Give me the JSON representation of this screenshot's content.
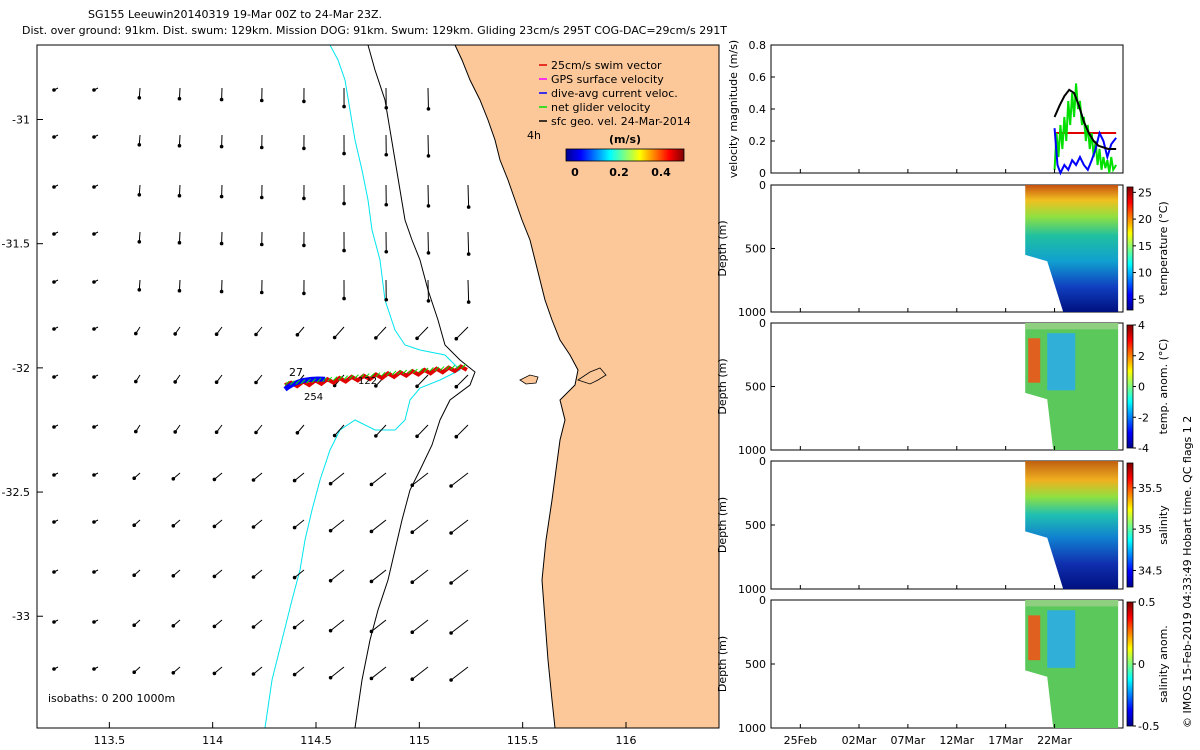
{
  "title": {
    "line1": "SG155 Leeuwin20140319 19-Mar 00Z to 24-Mar 23Z.",
    "line2": "Dist. over ground: 91km. Dist. swum: 129km. Mission DOG: 91km. Swum: 129km. Gliding 23cm/s 295T COG-DAC=29cm/s 291T"
  },
  "footer": "© IMOS 15-Feb-2019 04:33:49 Hobart time. QC flags 1  2",
  "colors": {
    "land": "#fcc89a",
    "isobath": "#000000",
    "isobath_shelf": "#00e5ee",
    "swim": "#e00000",
    "gps": "#ff00ff",
    "dac": "#0000ff",
    "net": "#00e000",
    "geo": "#000000"
  },
  "chart_data": [
    {
      "type": "map",
      "xlim": [
        113.15,
        116.45
      ],
      "ylim": [
        -33.45,
        -30.7
      ],
      "xticks": [
        "113.5",
        "114",
        "114.5",
        "115",
        "115.5",
        "116"
      ],
      "yticks": [
        "-31",
        "-31.5",
        "-32",
        "-32.5",
        "-33"
      ],
      "legend": {
        "placement": "top-right",
        "entries": [
          "25cm/s swim vector",
          "GPS surface velocity",
          "dive-avg current veloc.",
          "net glider velocity",
          "sfc geo. vel. 24-Mar-2014"
        ]
      },
      "colorbar": {
        "label": "(m/s)",
        "ticks": [
          "0",
          "0.2",
          "0.4"
        ],
        "range": [
          0,
          0.5
        ]
      },
      "annotations": {
        "time_label": "4h",
        "isobaths": "isobaths: 0   200  1000m",
        "dive_start": "27",
        "dive_end": "254",
        "dive_mid": "122"
      },
      "track": {
        "lon": [
          115.23,
          114.35
        ],
        "lat": [
          -32.0,
          -32.07
        ]
      }
    },
    {
      "type": "line",
      "ylabel": "velocity magnitude (m/s)",
      "ylim": [
        0,
        0.8
      ],
      "yticks": [
        "0",
        "0.2",
        "0.4",
        "0.6",
        "0.8"
      ],
      "series": [
        {
          "color": "#e00000",
          "x_days": [
            22.0,
            28.3
          ],
          "values": [
            0.25,
            0.25
          ]
        },
        {
          "color": "#00e000",
          "x_days": [
            22.0,
            22.2,
            22.4,
            22.6,
            22.8,
            23.0,
            23.2,
            23.4,
            23.6,
            23.8,
            24.0,
            24.2,
            24.4,
            24.6,
            24.8,
            25.0,
            25.2,
            25.4,
            25.6,
            25.8,
            26.0,
            26.2,
            26.4,
            26.6,
            26.8,
            27.0,
            27.2,
            27.4,
            27.6,
            27.8,
            28.0,
            28.3
          ],
          "values": [
            0.02,
            0.25,
            0.1,
            0.3,
            0.15,
            0.35,
            0.2,
            0.45,
            0.3,
            0.5,
            0.35,
            0.56,
            0.4,
            0.45,
            0.3,
            0.35,
            0.2,
            0.3,
            0.15,
            0.25,
            0.1,
            0.2,
            0.05,
            0.15,
            0.02,
            0.1,
            0.03,
            0.08,
            0.0,
            0.1,
            0.02,
            0.05
          ]
        },
        {
          "color": "#0000ff",
          "x_days": [
            22.0,
            22.3,
            22.6,
            23.0,
            23.4,
            23.8,
            24.2,
            24.6,
            25.0,
            25.4,
            25.8,
            26.2,
            26.6,
            27.0,
            27.4,
            27.8,
            28.3
          ],
          "values": [
            0.28,
            0.05,
            0.0,
            0.05,
            0.02,
            0.08,
            0.05,
            0.1,
            0.05,
            0.02,
            0.08,
            0.15,
            0.25,
            0.2,
            0.1,
            0.18,
            0.22
          ]
        },
        {
          "color": "#000000",
          "x_days": [
            22.0,
            22.5,
            23.0,
            23.5,
            24.0,
            24.5,
            25.0,
            25.5,
            26.0,
            26.5,
            27.0,
            27.5,
            28.0,
            28.3
          ],
          "values": [
            0.35,
            0.42,
            0.48,
            0.52,
            0.5,
            0.42,
            0.32,
            0.25,
            0.2,
            0.17,
            0.16,
            0.15,
            0.15,
            0.15
          ]
        }
      ]
    },
    {
      "type": "heatmap",
      "ylabel": "Depth (m)",
      "ylim": [
        1000,
        0
      ],
      "yticks": [
        "0",
        "500",
        "1000"
      ],
      "colorbar_label": "temperature (°C)",
      "colorbar_ticks": [
        "5",
        "10",
        "15",
        "20",
        "25"
      ],
      "crange": [
        3,
        26
      ]
    },
    {
      "type": "heatmap",
      "ylabel": "Depth (m)",
      "ylim": [
        1000,
        0
      ],
      "yticks": [
        "0",
        "500",
        "1000"
      ],
      "colorbar_label": "temp. anom. (°C)",
      "colorbar_ticks": [
        "-4",
        "-2",
        "0",
        "2",
        "4"
      ],
      "crange": [
        -4,
        4
      ]
    },
    {
      "type": "heatmap",
      "ylabel": "Depth (m)",
      "ylim": [
        1000,
        0
      ],
      "yticks": [
        "0",
        "500",
        "1000"
      ],
      "colorbar_label": "salinity",
      "colorbar_ticks": [
        "34.5",
        "35",
        "35.5"
      ],
      "crange": [
        34.3,
        35.8
      ]
    },
    {
      "type": "heatmap",
      "ylabel": "Depth (m)",
      "ylim": [
        1000,
        0
      ],
      "yticks": [
        "0",
        "500",
        "1000"
      ],
      "colorbar_label": "salinity anom.",
      "colorbar_ticks": [
        "-0.5",
        "0",
        "0.5"
      ],
      "crange": [
        -0.5,
        0.5
      ]
    }
  ],
  "time_axis": {
    "labels": [
      "25Feb",
      "02Mar",
      "07Mar",
      "12Mar",
      "17Mar",
      "22Mar"
    ],
    "label_days": [
      -4,
      2,
      7,
      12,
      17,
      22
    ],
    "xlim_days": [
      -7,
      29
    ],
    "data_start_day": 19,
    "data_end_day": 28.5
  }
}
